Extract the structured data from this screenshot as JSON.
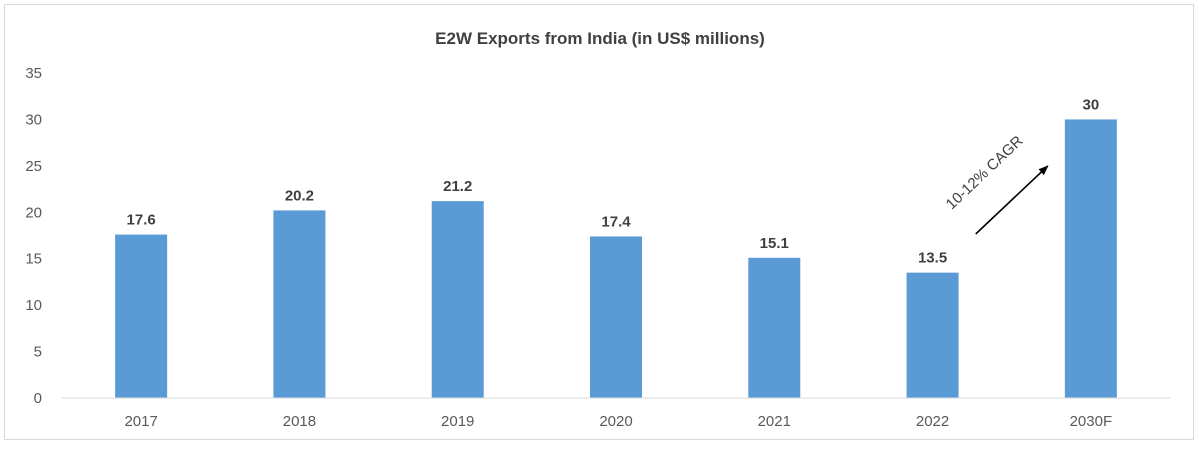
{
  "chart_data": {
    "type": "bar",
    "title": "E2W Exports from India (in US$ millions)",
    "categories": [
      "2017",
      "2018",
      "2019",
      "2020",
      "2021",
      "2022",
      "2030F"
    ],
    "values": [
      17.6,
      20.2,
      21.2,
      17.4,
      15.1,
      13.5,
      30
    ],
    "value_labels": [
      "17.6",
      "20.2",
      "21.2",
      "17.4",
      "15.1",
      "13.5",
      "30"
    ],
    "ylim": [
      0,
      35
    ],
    "yticks": [
      0,
      5,
      10,
      15,
      20,
      25,
      30,
      35
    ],
    "grid": false,
    "legend": "none",
    "bar_color": "#5b9bd5",
    "annotation": {
      "text": "10-12% CAGR",
      "from_category": "2022",
      "to_category": "2030F"
    }
  }
}
